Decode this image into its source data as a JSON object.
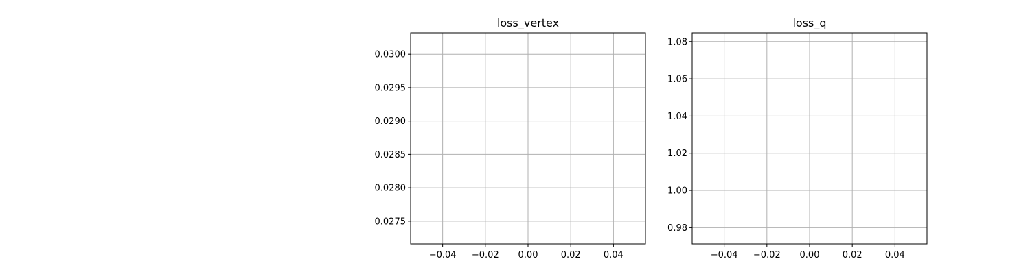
{
  "chart_data": [
    {
      "type": "line",
      "title": "loss_vertex",
      "xlabel": "",
      "ylabel": "",
      "xlim": [
        -0.055,
        0.055
      ],
      "ylim": [
        0.02716,
        0.03032
      ],
      "xticks": [
        -0.04,
        -0.02,
        0.0,
        0.02,
        0.04
      ],
      "xtick_labels": [
        "−0.04",
        "−0.02",
        "0.00",
        "0.02",
        "0.04"
      ],
      "yticks": [
        0.0275,
        0.028,
        0.0285,
        0.029,
        0.0295,
        0.03
      ],
      "ytick_labels": [
        "0.0275",
        "0.0280",
        "0.0285",
        "0.0290",
        "0.0295",
        "0.0300"
      ],
      "grid": true,
      "series": []
    },
    {
      "type": "line",
      "title": "loss_q",
      "xlabel": "",
      "ylabel": "",
      "xlim": [
        -0.055,
        0.055
      ],
      "ylim": [
        0.9713,
        1.0847
      ],
      "xticks": [
        -0.04,
        -0.02,
        0.0,
        0.02,
        0.04
      ],
      "xtick_labels": [
        "−0.04",
        "−0.02",
        "0.00",
        "0.02",
        "0.04"
      ],
      "yticks": [
        0.98,
        1.0,
        1.02,
        1.04,
        1.06,
        1.08
      ],
      "ytick_labels": [
        "0.98",
        "1.00",
        "1.02",
        "1.04",
        "1.06",
        "1.08"
      ],
      "grid": true,
      "series": []
    }
  ],
  "colors": {
    "grid": "#b0b0b0",
    "axes": "#000000",
    "background": "#ffffff"
  }
}
